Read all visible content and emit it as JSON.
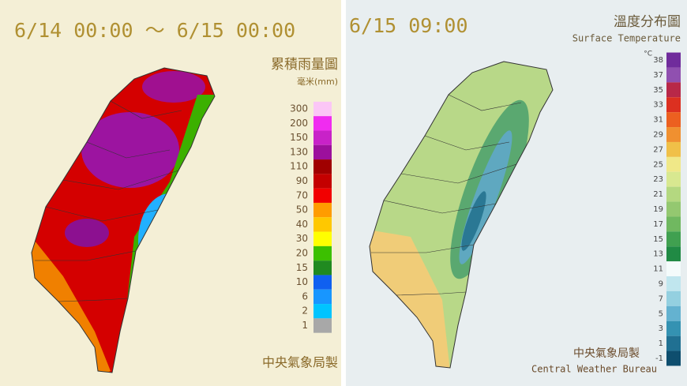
{
  "rain_panel": {
    "period": "6/14 00:00 ～ 6/15 00:00",
    "title": "累積雨量圖",
    "unit": "毫米(mm)",
    "legend": [
      {
        "label": "300",
        "color": "#fbc6f6"
      },
      {
        "label": "200",
        "color": "#f02cf0"
      },
      {
        "label": "150",
        "color": "#c822c8"
      },
      {
        "label": "130",
        "color": "#9c109c"
      },
      {
        "label": "110",
        "color": "#a00000"
      },
      {
        "label": "90",
        "color": "#c40000"
      },
      {
        "label": "70",
        "color": "#f20000"
      },
      {
        "label": "50",
        "color": "#ff9c00"
      },
      {
        "label": "40",
        "color": "#ffc800"
      },
      {
        "label": "30",
        "color": "#ffff00"
      },
      {
        "label": "20",
        "color": "#3cc000"
      },
      {
        "label": "15",
        "color": "#208a20"
      },
      {
        "label": "10",
        "color": "#1060f0"
      },
      {
        "label": "6",
        "color": "#1896ff"
      },
      {
        "label": "2",
        "color": "#00c4ff"
      },
      {
        "label": "1",
        "color": "#a8a8a8"
      }
    ],
    "credit": "中央氣象局製"
  },
  "temperature_panel": {
    "time": "6/15 09:00",
    "title": "溫度分布圖",
    "subtitle": "Surface Temperature",
    "unit": "°C",
    "legend": [
      {
        "label": "38",
        "color": "#702c9c"
      },
      {
        "label": "37",
        "color": "#9050b0"
      },
      {
        "label": "35",
        "color": "#b82848"
      },
      {
        "label": "33",
        "color": "#dc3020"
      },
      {
        "label": "31",
        "color": "#ec6020"
      },
      {
        "label": "29",
        "color": "#f09030"
      },
      {
        "label": "27",
        "color": "#f0c048"
      },
      {
        "label": "25",
        "color": "#f0e888"
      },
      {
        "label": "23",
        "color": "#d8e890"
      },
      {
        "label": "21",
        "color": "#b4d880"
      },
      {
        "label": "19",
        "color": "#94c870"
      },
      {
        "label": "17",
        "color": "#70b860"
      },
      {
        "label": "15",
        "color": "#40a050"
      },
      {
        "label": "13",
        "color": "#208a44"
      },
      {
        "label": "11",
        "color": "#f4fbfb"
      },
      {
        "label": "9",
        "color": "#c0e6ee"
      },
      {
        "label": "7",
        "color": "#94d0e0"
      },
      {
        "label": "5",
        "color": "#64b2d0"
      },
      {
        "label": "3",
        "color": "#3492b2"
      },
      {
        "label": "1",
        "color": "#207092"
      },
      {
        "label": "-1",
        "color": "#0e4e6e"
      }
    ],
    "credit": "中央氣象局製",
    "credit_en": "Central Weather Bureau"
  }
}
